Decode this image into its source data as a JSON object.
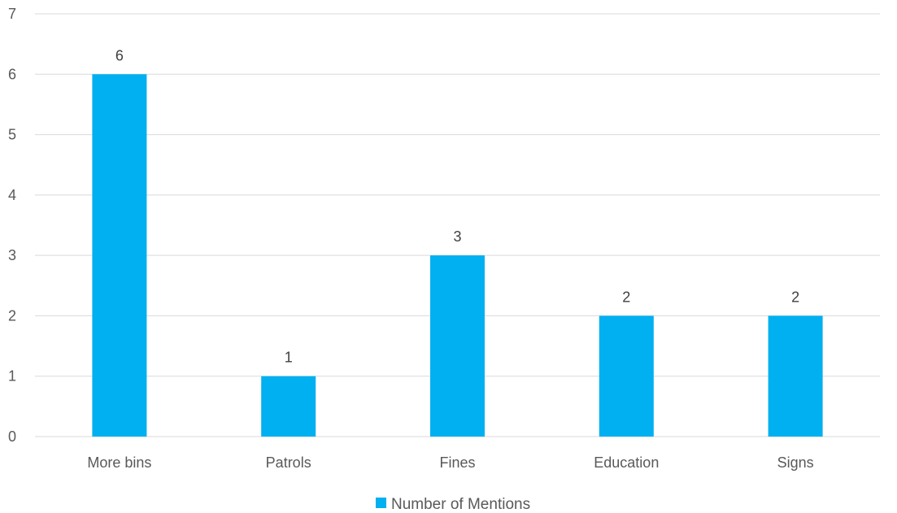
{
  "chart_data": {
    "type": "bar",
    "categories": [
      "More bins",
      "Patrols",
      "Fines",
      "Education",
      "Signs"
    ],
    "series": [
      {
        "name": "Number of Mentions",
        "values": [
          6,
          1,
          3,
          2,
          2
        ],
        "color": "#00b0f0"
      }
    ],
    "data_labels": [
      "6",
      "1",
      "3",
      "2",
      "2"
    ],
    "y_ticks": [
      "0",
      "1",
      "2",
      "3",
      "4",
      "5",
      "6",
      "7"
    ],
    "ylim": [
      0,
      7
    ],
    "title": "",
    "xlabel": "",
    "ylabel": "",
    "grid": true,
    "legend": "bottom-center",
    "colors": {
      "bar": "#00b0f0",
      "grid": "#d9d9d9",
      "axis_text": "#595959",
      "label_text": "#404040"
    }
  }
}
